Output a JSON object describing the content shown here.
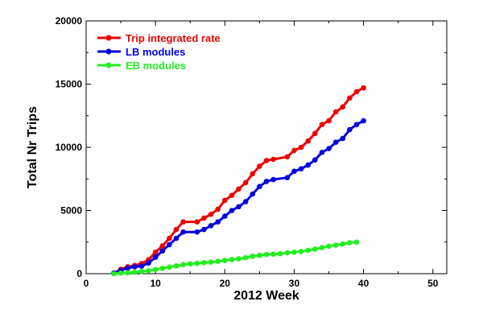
{
  "chart_data": {
    "type": "line",
    "title": "",
    "xlabel": "2012 Week",
    "ylabel": "Total Nr Trips",
    "xlim": [
      0,
      52
    ],
    "ylim": [
      0,
      20000
    ],
    "xticks": [
      0,
      10,
      20,
      30,
      40,
      50
    ],
    "yticks": [
      0,
      5000,
      10000,
      15000,
      20000
    ],
    "grid": false,
    "legend_position": "top-left",
    "series": [
      {
        "name": "Trip integrated rate",
        "color": "#ee0000",
        "x": [
          4,
          5,
          6,
          7,
          8,
          9,
          10,
          11,
          12,
          13,
          14,
          16,
          17,
          18,
          19,
          20,
          21,
          22,
          23,
          24,
          25,
          26,
          27,
          29,
          30,
          31,
          32,
          33,
          34,
          35,
          36,
          37,
          38,
          39,
          40
        ],
        "y": [
          50,
          350,
          550,
          650,
          800,
          1100,
          1700,
          2200,
          2800,
          3500,
          4100,
          4100,
          4400,
          4700,
          5100,
          5800,
          6200,
          6700,
          7200,
          7900,
          8500,
          8950,
          9050,
          9250,
          9750,
          10000,
          10500,
          11100,
          11800,
          12100,
          12800,
          13200,
          13900,
          14400,
          14700
        ]
      },
      {
        "name": "LB modules",
        "color": "#0000dd",
        "x": [
          4,
          5,
          6,
          7,
          8,
          9,
          10,
          11,
          12,
          13,
          14,
          16,
          17,
          18,
          19,
          20,
          21,
          22,
          23,
          24,
          25,
          26,
          27,
          29,
          30,
          31,
          32,
          33,
          34,
          35,
          36,
          37,
          38,
          39,
          40
        ],
        "y": [
          50,
          250,
          450,
          550,
          600,
          850,
          1300,
          1800,
          2300,
          2800,
          3300,
          3300,
          3500,
          3800,
          4100,
          4550,
          5000,
          5300,
          5700,
          6300,
          6900,
          7300,
          7450,
          7600,
          8100,
          8300,
          8600,
          9000,
          9600,
          9900,
          10400,
          10700,
          11400,
          11800,
          12100
        ]
      },
      {
        "name": "EB modules",
        "color": "#22ee22",
        "x": [
          4,
          5,
          6,
          7,
          8,
          9,
          10,
          11,
          12,
          13,
          14,
          15,
          16,
          17,
          18,
          19,
          20,
          21,
          22,
          23,
          24,
          25,
          26,
          27,
          28,
          29,
          30,
          31,
          32,
          33,
          34,
          35,
          36,
          37,
          38,
          39
        ],
        "y": [
          0,
          50,
          80,
          120,
          170,
          230,
          330,
          430,
          520,
          620,
          720,
          780,
          820,
          870,
          920,
          980,
          1050,
          1120,
          1180,
          1270,
          1380,
          1450,
          1520,
          1550,
          1580,
          1650,
          1700,
          1760,
          1850,
          1950,
          2070,
          2180,
          2260,
          2350,
          2450,
          2500
        ]
      }
    ]
  }
}
